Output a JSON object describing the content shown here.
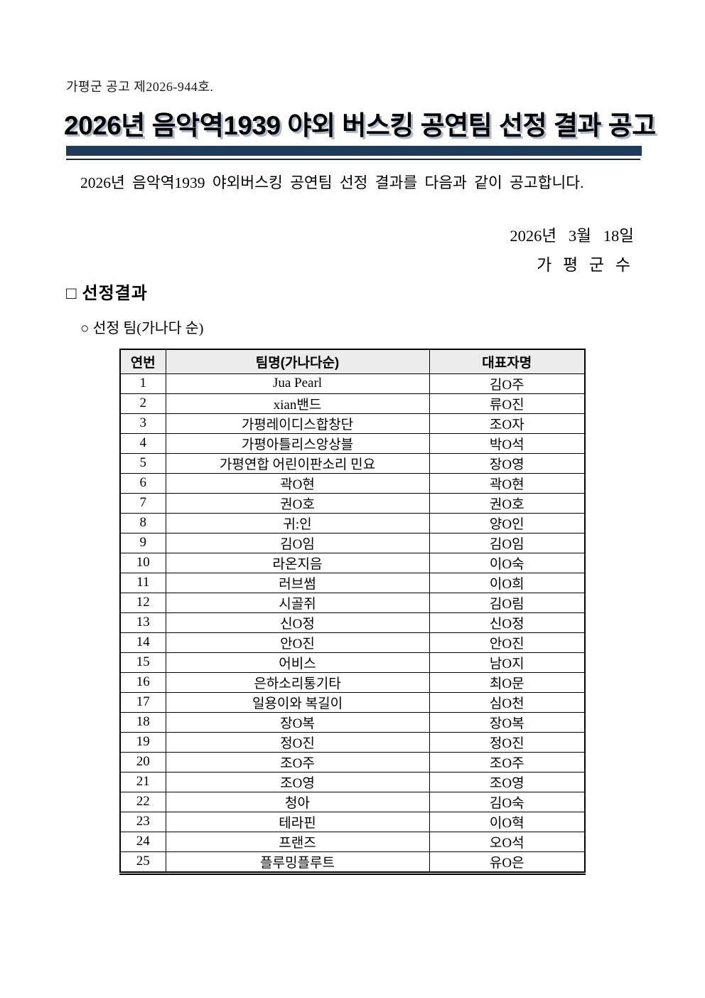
{
  "doc": {
    "notice_number": "가평군 공고 제2026-944호.",
    "title": "2026년 음악역1939 야외 버스킹 공연팀 선정 결과 공고",
    "intro": "2026년 음악역1939 야외버스킹 공연팀 선정 결과를 다음과 같이 공고합니다.",
    "date": "2026년   3월   18일",
    "signer": "가 평 군 수",
    "section_heading": "□ 선정결과",
    "subsection_heading": "○ 선정 팀(가나다 순)",
    "colors": {
      "bar_navy": "#1f3b5c",
      "rule_dark": "#16263d",
      "header_gray": "#ececec",
      "title_shadow": "#adbacd"
    }
  },
  "table": {
    "headers": [
      "연번",
      "팀명(가나다순)",
      "대표자명"
    ],
    "rows": [
      [
        "1",
        "Jua Pearl",
        "김O주"
      ],
      [
        "2",
        "xian밴드",
        "류O진"
      ],
      [
        "3",
        "가평레이디스합창단",
        "조O자"
      ],
      [
        "4",
        "가평아틀리스앙상블",
        "박O석"
      ],
      [
        "5",
        "가평연합 어린이판소리 민요",
        "장O영"
      ],
      [
        "6",
        "곽O현",
        "곽O현"
      ],
      [
        "7",
        "권O호",
        "권O호"
      ],
      [
        "8",
        "귀:인",
        "양O인"
      ],
      [
        "9",
        "김O임",
        "김O임"
      ],
      [
        "10",
        "라온지음",
        "이O숙"
      ],
      [
        "11",
        "러브썸",
        "이O희"
      ],
      [
        "12",
        "시골쥐",
        "김O림"
      ],
      [
        "13",
        "신O정",
        "신O정"
      ],
      [
        "14",
        "안O진",
        "안O진"
      ],
      [
        "15",
        "어비스",
        "남O지"
      ],
      [
        "16",
        "은하소리통기타",
        "최O문"
      ],
      [
        "17",
        "일용이와 복길이",
        "심O천"
      ],
      [
        "18",
        "장O복",
        "장O복"
      ],
      [
        "19",
        "정O진",
        "정O진"
      ],
      [
        "20",
        "조O주",
        "조O주"
      ],
      [
        "21",
        "조O영",
        "조O영"
      ],
      [
        "22",
        "청아",
        "김O숙"
      ],
      [
        "23",
        "테라핀",
        "이O혁"
      ],
      [
        "24",
        "프랜즈",
        "오O석"
      ],
      [
        "25",
        "플루밍플루트",
        "유O은"
      ]
    ]
  }
}
